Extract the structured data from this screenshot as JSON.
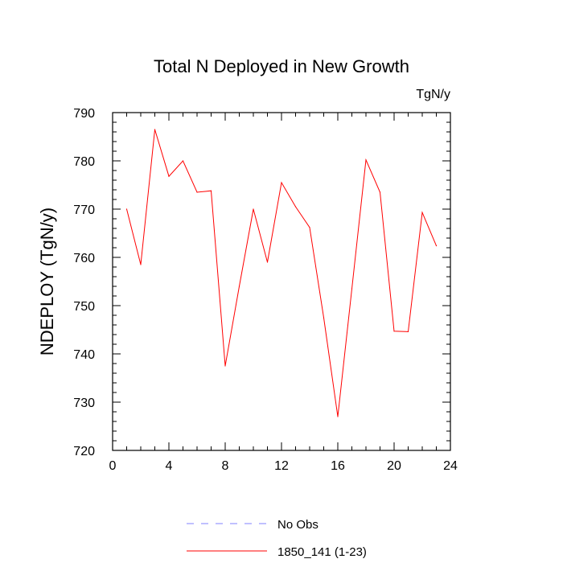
{
  "chart_data": {
    "type": "line",
    "title": "Total N Deployed in New Growth",
    "units_label": "TgN/y",
    "xlabel": "",
    "ylabel": "NDEPLOY  (TgN/y)",
    "xlim": [
      0,
      24
    ],
    "ylim": [
      720,
      790
    ],
    "x_ticks": [
      0,
      4,
      8,
      12,
      16,
      20,
      24
    ],
    "y_ticks": [
      720,
      730,
      740,
      750,
      760,
      770,
      780,
      790
    ],
    "x_tick_labels": [
      "0",
      "4",
      "8",
      "12",
      "16",
      "20",
      "24"
    ],
    "y_tick_labels": [
      "720",
      "730",
      "740",
      "750",
      "760",
      "770",
      "780",
      "790"
    ],
    "series": [
      {
        "name": "1850_141 (1-23)",
        "color": "#ff0000",
        "style": "solid",
        "x": [
          1,
          2,
          3,
          4,
          5,
          6,
          7,
          8,
          9,
          10,
          11,
          12,
          13,
          14,
          15,
          16,
          17,
          18,
          19,
          20,
          21,
          22,
          23
        ],
        "y": [
          770.0,
          758.5,
          786.5,
          776.8,
          780.0,
          773.5,
          773.8,
          737.5,
          754.0,
          770.0,
          759.0,
          775.5,
          770.5,
          766.2,
          747.5,
          727.0,
          753.5,
          780.2,
          773.5,
          744.7,
          744.6,
          769.3,
          762.4
        ]
      },
      {
        "name": "No Obs",
        "color": "#8080ff",
        "style": "dashed",
        "x": [],
        "y": []
      }
    ],
    "legend": [
      {
        "label": "No Obs",
        "color": "#8080ff",
        "style": "dashed"
      },
      {
        "label": "1850_141 (1-23)",
        "color": "#ff0000",
        "style": "solid"
      }
    ],
    "legend_position": "bottom"
  }
}
